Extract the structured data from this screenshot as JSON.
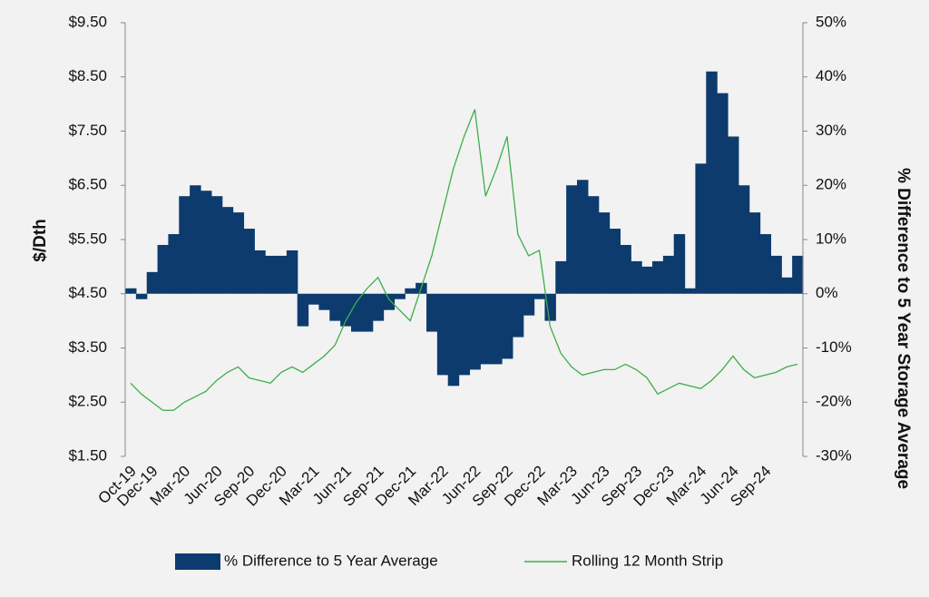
{
  "chart_data": {
    "type": "bar_line",
    "y_label": "$/Dth",
    "y2_label": "% Difference to 5 Year Storage Average",
    "categories": [
      "Oct-19",
      null,
      "Dec-19",
      null,
      null,
      "Mar-20",
      null,
      null,
      "Jun-20",
      null,
      null,
      "Sep-20",
      null,
      null,
      "Dec-20",
      null,
      null,
      "Mar-21",
      null,
      null,
      "Jun-21",
      null,
      null,
      "Sep-21",
      null,
      null,
      "Dec-21",
      null,
      null,
      "Mar-22",
      null,
      null,
      "Jun-22",
      null,
      null,
      "Sep-22",
      null,
      null,
      "Dec-22",
      null,
      null,
      "Mar-23",
      null,
      null,
      "Jun-23",
      null,
      null,
      "Sep-23",
      null,
      null,
      "Dec-23",
      null,
      null,
      "Mar-24",
      null,
      null,
      "Jun-24",
      null,
      null,
      "Sep-24",
      null,
      null,
      null
    ],
    "series": [
      {
        "name": "% Difference to 5 Year Average",
        "kind": "bar",
        "axis": "y2",
        "color": "#0d3b6e",
        "values": [
          1,
          -1,
          4,
          9,
          11,
          18,
          20,
          19,
          18,
          16,
          15,
          12,
          8,
          7,
          7,
          8,
          -6,
          -2,
          -3,
          -5,
          -6,
          -7,
          -7,
          -5,
          -3,
          -1,
          1,
          2,
          -7,
          -15,
          -17,
          -15,
          -14,
          -13,
          -13,
          -12,
          -8,
          -4,
          -1,
          -5,
          6,
          20,
          21,
          18,
          15,
          12,
          9,
          6,
          5,
          6,
          7,
          11,
          1,
          24,
          41,
          37,
          29,
          20,
          15,
          11,
          7,
          3,
          7
        ]
      },
      {
        "name": "Rolling 12 Month Strip",
        "kind": "line",
        "axis": "y",
        "color": "#3cae4a",
        "values": [
          2.85,
          2.65,
          2.5,
          2.35,
          2.35,
          2.5,
          2.6,
          2.7,
          2.9,
          3.05,
          3.15,
          2.95,
          2.9,
          2.85,
          3.05,
          3.15,
          3.05,
          3.2,
          3.35,
          3.55,
          4.0,
          4.35,
          4.6,
          4.8,
          4.4,
          4.2,
          4.0,
          4.6,
          5.2,
          6.0,
          6.8,
          7.4,
          7.9,
          6.3,
          6.8,
          7.4,
          5.6,
          5.2,
          5.3,
          3.9,
          3.4,
          3.15,
          3.0,
          3.05,
          3.1,
          3.1,
          3.2,
          3.1,
          2.95,
          2.65,
          2.75,
          2.85,
          2.8,
          2.75,
          2.9,
          3.1,
          3.35,
          3.1,
          2.95,
          3.0,
          3.05,
          3.15,
          3.2
        ]
      }
    ],
    "ylim": [
      1.5,
      9.5
    ],
    "yticks": [
      {
        "value": 1.5,
        "label": "$1.50"
      },
      {
        "value": 2.5,
        "label": "$2.50"
      },
      {
        "value": 3.5,
        "label": "$3.50"
      },
      {
        "value": 4.5,
        "label": "$4.50"
      },
      {
        "value": 5.5,
        "label": "$5.50"
      },
      {
        "value": 6.5,
        "label": "$6.50"
      },
      {
        "value": 7.5,
        "label": "$7.50"
      },
      {
        "value": 8.5,
        "label": "$8.50"
      },
      {
        "value": 9.5,
        "label": "$9.50"
      }
    ],
    "y2lim": [
      -30,
      50
    ],
    "y2ticks": [
      {
        "value": -30,
        "label": "-30%"
      },
      {
        "value": -20,
        "label": "-20%"
      },
      {
        "value": -10,
        "label": "-10%"
      },
      {
        "value": 0,
        "label": "0%"
      },
      {
        "value": 10,
        "label": "10%"
      },
      {
        "value": 20,
        "label": "20%"
      },
      {
        "value": 30,
        "label": "30%"
      },
      {
        "value": 40,
        "label": "40%"
      },
      {
        "value": 50,
        "label": "50%"
      }
    ],
    "legend": "bottom"
  }
}
